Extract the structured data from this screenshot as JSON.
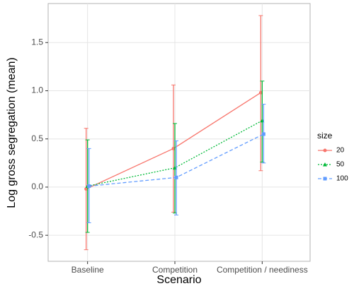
{
  "chart_data": {
    "type": "line",
    "x_label": "Scenario",
    "y_label": "Log gross segregation (mean)",
    "legend_title": "size",
    "categories": [
      "Baseline",
      "Competition",
      "Competition / neediness"
    ],
    "series": [
      {
        "name": "20",
        "color": "#F8766D",
        "dash": "solid",
        "marker": "circle",
        "values": [
          -0.02,
          0.4,
          0.98
        ],
        "lower": [
          -0.65,
          -0.26,
          0.17
        ],
        "upper": [
          0.61,
          1.06,
          1.78
        ]
      },
      {
        "name": "50",
        "color": "#00BA38",
        "dash": "dotted",
        "marker": "triangle",
        "values": [
          0.01,
          0.2,
          0.69
        ],
        "lower": [
          -0.47,
          -0.27,
          0.26
        ],
        "upper": [
          0.49,
          0.66,
          1.1
        ]
      },
      {
        "name": "100",
        "color": "#619CFF",
        "dash": "dashed",
        "marker": "square",
        "values": [
          0.01,
          0.1,
          0.55
        ],
        "lower": [
          -0.37,
          -0.29,
          0.25
        ],
        "upper": [
          0.4,
          0.48,
          0.86
        ]
      }
    ],
    "ylim": [
      -0.77,
      1.905
    ],
    "yticks": [
      -0.5,
      {
        "value": 0,
        "label": "0.0"
      },
      0.5,
      {
        "value": 1,
        "label": "1.0"
      },
      1.5
    ],
    "grid": true
  }
}
